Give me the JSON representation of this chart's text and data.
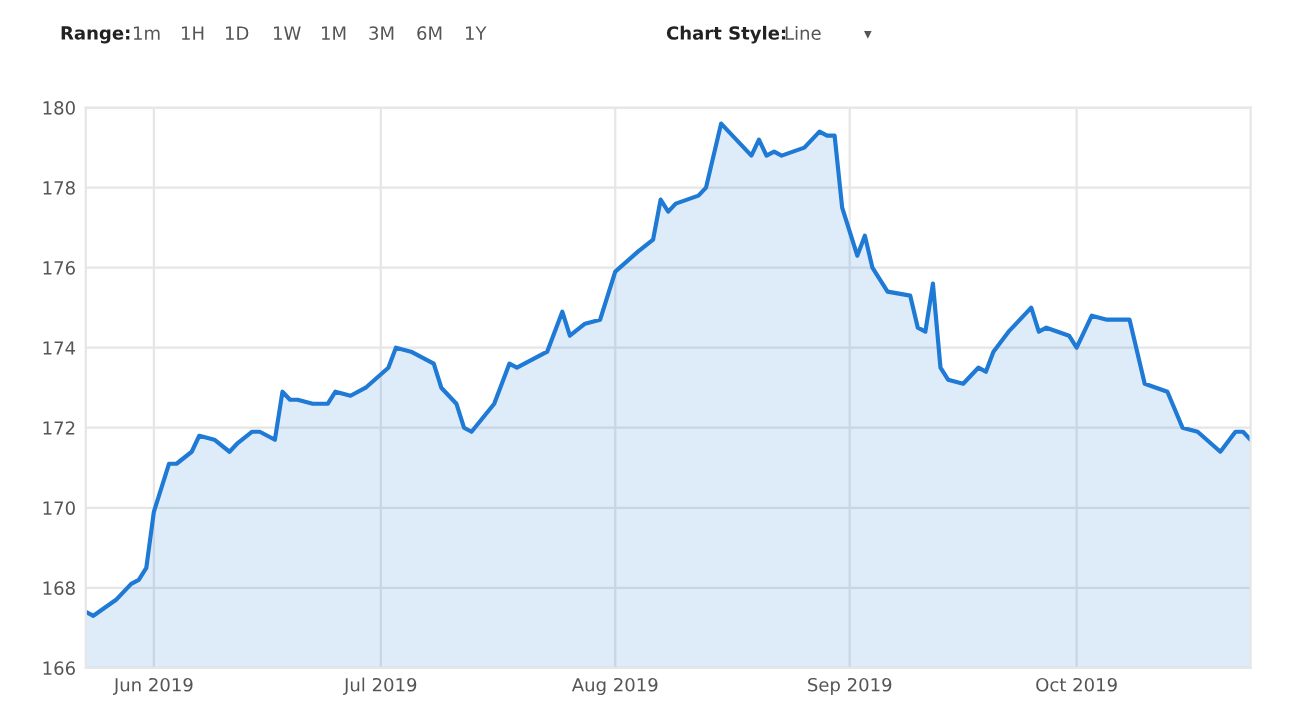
{
  "chart_data": {
    "type": "area",
    "annotations": [
      "Range:",
      "1m",
      "1H",
      "1D",
      "1W",
      "1M",
      "3M",
      "6M",
      "1Y",
      "Chart Style:",
      "Line",
      "▾"
    ],
    "x": [
      "2019-05-23",
      "2019-05-24",
      "2019-05-27",
      "2019-05-29",
      "2019-05-30",
      "2019-05-31",
      "2019-06-01",
      "2019-06-03",
      "2019-06-04",
      "2019-06-06",
      "2019-06-07",
      "2019-06-09",
      "2019-06-11",
      "2019-06-12",
      "2019-06-14",
      "2019-06-15",
      "2019-06-17",
      "2019-06-18",
      "2019-06-19",
      "2019-06-20",
      "2019-06-22",
      "2019-06-24",
      "2019-06-25",
      "2019-06-27",
      "2019-06-29",
      "2019-07-02",
      "2019-07-03",
      "2019-07-05",
      "2019-07-08",
      "2019-07-09",
      "2019-07-11",
      "2019-07-12",
      "2019-07-13",
      "2019-07-16",
      "2019-07-18",
      "2019-07-19",
      "2019-07-21",
      "2019-07-23",
      "2019-07-25",
      "2019-07-26",
      "2019-07-28",
      "2019-07-30",
      "2019-08-01",
      "2019-08-04",
      "2019-08-06",
      "2019-08-07",
      "2019-08-08",
      "2019-08-09",
      "2019-08-12",
      "2019-08-13",
      "2019-08-15",
      "2019-08-16",
      "2019-08-19",
      "2019-08-20",
      "2019-08-21",
      "2019-08-22",
      "2019-08-23",
      "2019-08-26",
      "2019-08-28",
      "2019-08-29",
      "2019-08-30",
      "2019-08-31",
      "2019-09-02",
      "2019-09-03",
      "2019-09-04",
      "2019-09-06",
      "2019-09-09",
      "2019-09-10",
      "2019-09-11",
      "2019-09-12",
      "2019-09-13",
      "2019-09-14",
      "2019-09-16",
      "2019-09-18",
      "2019-09-19",
      "2019-09-20",
      "2019-09-22",
      "2019-09-25",
      "2019-09-26",
      "2019-09-27",
      "2019-09-30",
      "2019-10-01",
      "2019-10-03",
      "2019-10-05",
      "2019-10-08",
      "2019-10-10",
      "2019-10-13",
      "2019-10-15",
      "2019-10-17",
      "2019-10-20",
      "2019-10-22",
      "2019-10-23",
      "2019-10-24"
    ],
    "series": [
      {
        "color": "#1f7ad6",
        "values": [
          167.4,
          167.3,
          167.7,
          168.1,
          168.2,
          168.5,
          169.9,
          171.1,
          171.1,
          171.4,
          171.8,
          171.7,
          171.4,
          171.6,
          171.9,
          171.9,
          171.7,
          172.9,
          172.7,
          172.7,
          172.6,
          172.6,
          172.9,
          172.8,
          173.0,
          173.5,
          174.0,
          173.9,
          173.6,
          173.0,
          172.6,
          172.0,
          171.9,
          172.6,
          173.6,
          173.5,
          173.7,
          173.9,
          174.9,
          174.3,
          174.6,
          174.7,
          175.9,
          176.4,
          176.7,
          177.7,
          177.4,
          177.6,
          177.8,
          178.0,
          179.6,
          179.4,
          178.8,
          179.2,
          178.8,
          178.9,
          178.8,
          179.0,
          179.4,
          179.3,
          179.3,
          177.5,
          176.3,
          176.8,
          176.0,
          175.4,
          175.3,
          174.5,
          174.4,
          175.6,
          173.5,
          173.2,
          173.1,
          173.5,
          173.4,
          173.9,
          174.4,
          175.0,
          174.4,
          174.5,
          174.3,
          174.0,
          174.8,
          174.7,
          174.7,
          173.1,
          172.9,
          172.0,
          171.9,
          171.4,
          171.9,
          171.9,
          171.7
        ]
      }
    ],
    "xlim": [
      "2019-05-23",
      "2019-10-24"
    ],
    "xticks": [
      {
        "value": "2019-06-01",
        "label": "Jun 2019"
      },
      {
        "value": "2019-07-01",
        "label": "Jul 2019"
      },
      {
        "value": "2019-08-01",
        "label": "Aug 2019"
      },
      {
        "value": "2019-09-01",
        "label": "Sep 2019"
      },
      {
        "value": "2019-10-01",
        "label": "Oct 2019"
      }
    ],
    "ylim": [
      166,
      180
    ],
    "yticks": [
      166,
      168,
      170,
      172,
      174,
      176,
      178,
      180
    ],
    "grid": true,
    "marker": "none",
    "line_style": "solid"
  }
}
